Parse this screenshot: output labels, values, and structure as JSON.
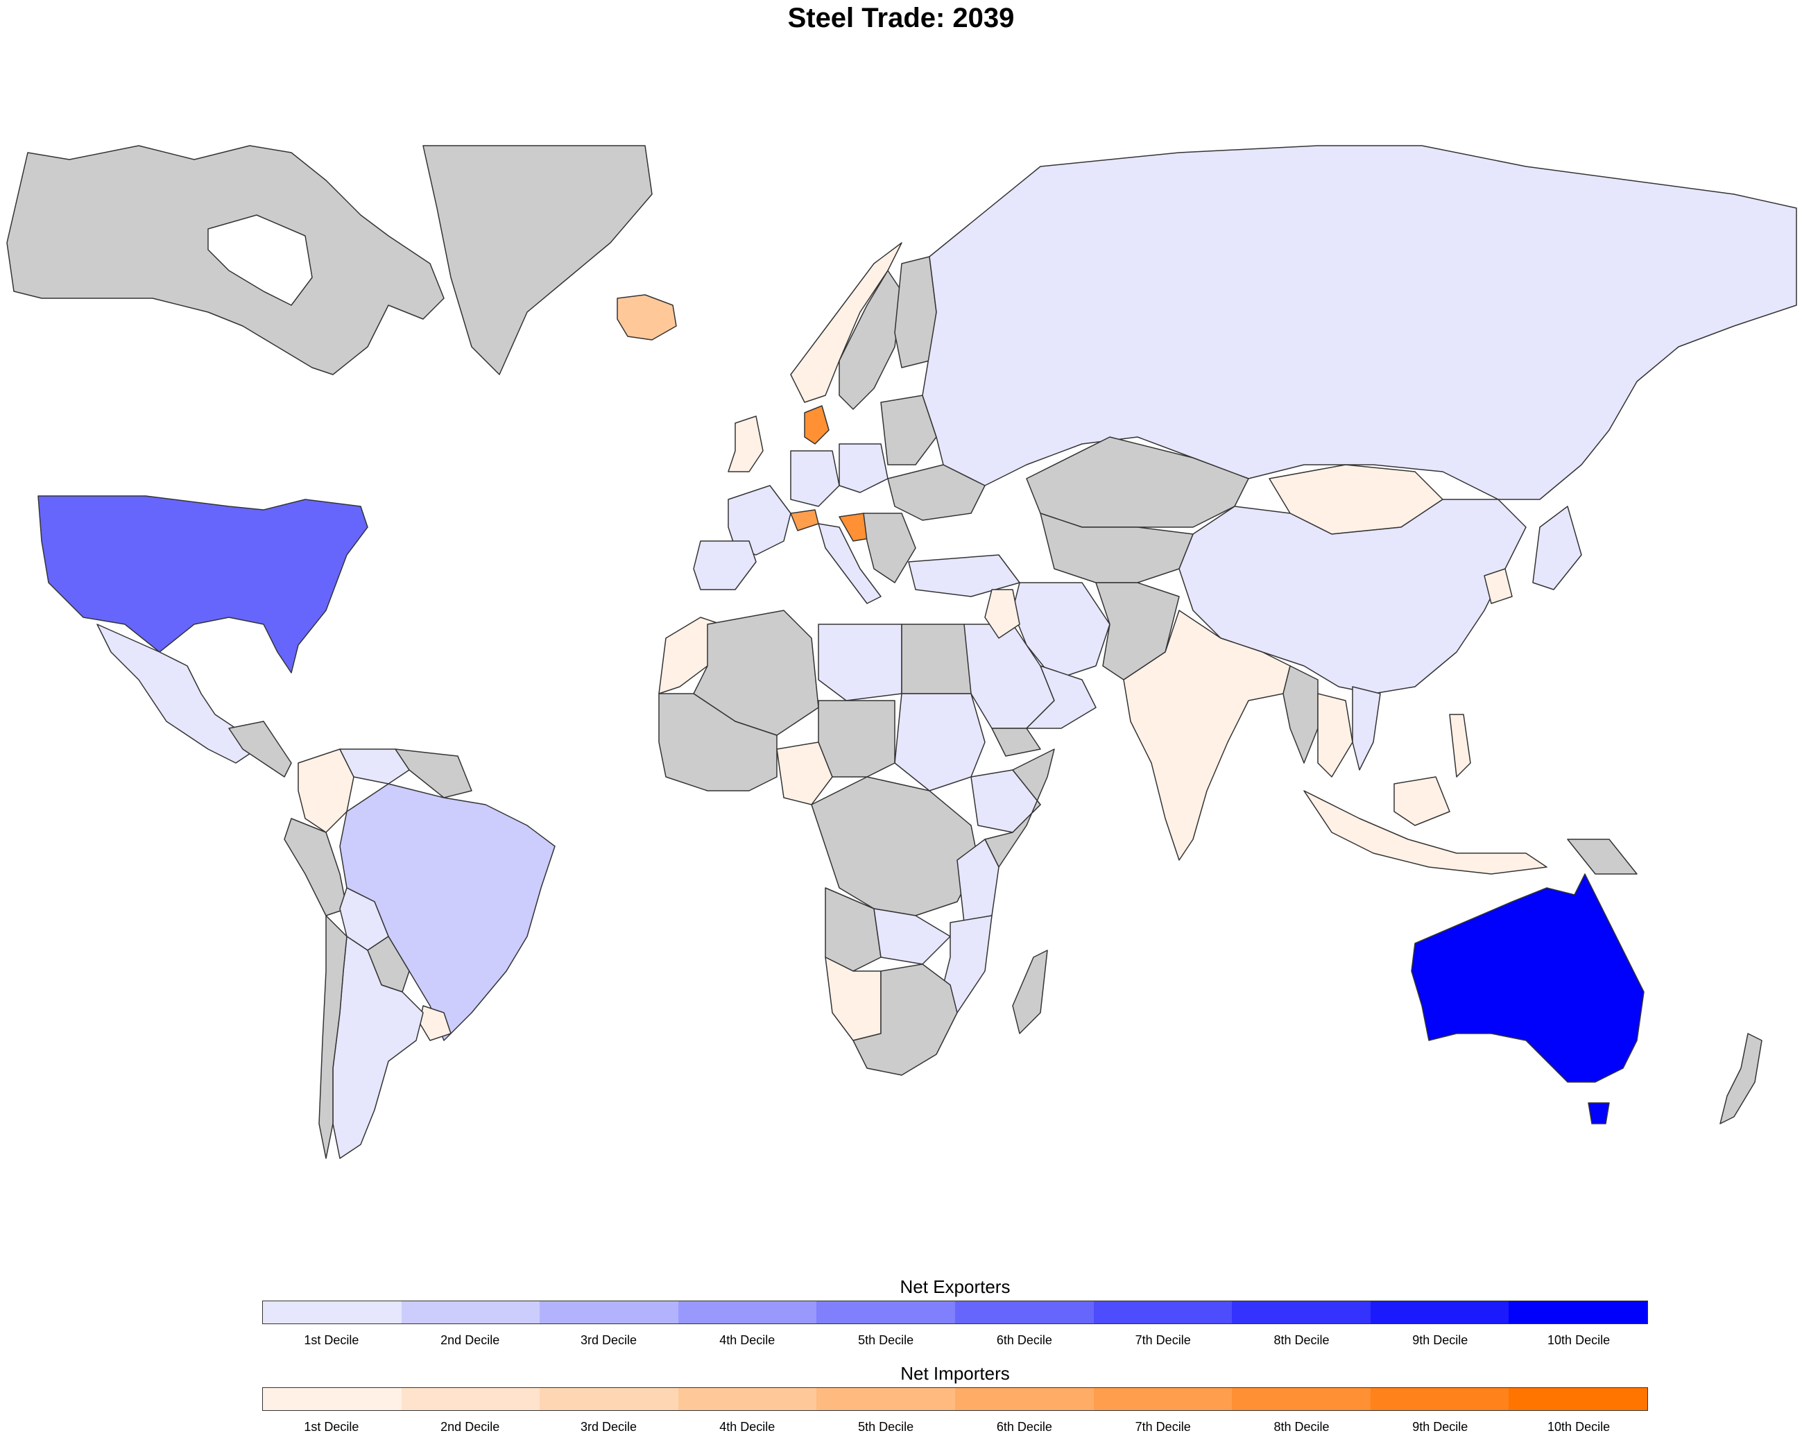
{
  "title": "Steel Trade: 2039",
  "colors": {
    "no_data": "#cccccc",
    "border": "#333333",
    "ocean": "#ffffff"
  },
  "legend_exporters": {
    "title": "Net Exporters",
    "labels": [
      "1st Decile",
      "2nd Decile",
      "3rd Decile",
      "4th Decile",
      "5th Decile",
      "6th Decile",
      "7th Decile",
      "8th Decile",
      "9th Decile",
      "10th Decile"
    ],
    "colors": [
      "#e6e6fd",
      "#ccccfd",
      "#b3b3fd",
      "#9999fd",
      "#8080fd",
      "#6666fd",
      "#4d4dfd",
      "#3333fd",
      "#1a1afd",
      "#0000fd"
    ]
  },
  "legend_importers": {
    "title": "Net Importers",
    "labels": [
      "1st Decile",
      "2nd Decile",
      "3rd Decile",
      "4th Decile",
      "5th Decile",
      "6th Decile",
      "7th Decile",
      "8th Decile",
      "9th Decile",
      "10th Decile"
    ],
    "colors": [
      "#fff1e6",
      "#ffe3cc",
      "#ffd6b3",
      "#ffc899",
      "#ffba80",
      "#ffac66",
      "#ff9e4d",
      "#ff9033",
      "#ff831a",
      "#ff7500"
    ]
  },
  "regions": [
    {
      "name": "Canada",
      "class": "no-data"
    },
    {
      "name": "Greenland",
      "class": "no-data"
    },
    {
      "name": "United States",
      "class": "exporter-6"
    },
    {
      "name": "Mexico",
      "class": "exporter-1"
    },
    {
      "name": "Brazil",
      "class": "exporter-2"
    },
    {
      "name": "Argentina",
      "class": "exporter-1"
    },
    {
      "name": "Colombia",
      "class": "importer-1"
    },
    {
      "name": "Russia",
      "class": "exporter-1"
    },
    {
      "name": "China",
      "class": "exporter-1"
    },
    {
      "name": "Mongolia",
      "class": "importer-1"
    },
    {
      "name": "Kazakhstan",
      "class": "no-data"
    },
    {
      "name": "India",
      "class": "importer-1"
    },
    {
      "name": "Iran",
      "class": "exporter-1"
    },
    {
      "name": "Saudi Arabia",
      "class": "exporter-1"
    },
    {
      "name": "Australia",
      "class": "exporter-10"
    },
    {
      "name": "New Zealand",
      "class": "no-data"
    },
    {
      "name": "Iceland",
      "class": "importer-4"
    },
    {
      "name": "Norway",
      "class": "importer-1"
    },
    {
      "name": "Sweden",
      "class": "no-data"
    },
    {
      "name": "Denmark",
      "class": "importer-8"
    },
    {
      "name": "Switzerland",
      "class": "importer-7"
    },
    {
      "name": "Croatia",
      "class": "importer-8"
    },
    {
      "name": "Nigeria",
      "class": "importer-1"
    },
    {
      "name": "Namibia",
      "class": "importer-1"
    },
    {
      "name": "Libya",
      "class": "exporter-1"
    },
    {
      "name": "Algeria",
      "class": "no-data"
    },
    {
      "name": "Egypt",
      "class": "no-data"
    },
    {
      "name": "Sudan",
      "class": "exporter-1"
    },
    {
      "name": "South Africa",
      "class": "no-data"
    },
    {
      "name": "Indonesia",
      "class": "importer-1"
    },
    {
      "name": "Japan",
      "class": "exporter-1"
    },
    {
      "name": "Madagascar",
      "class": "no-data"
    }
  ]
}
